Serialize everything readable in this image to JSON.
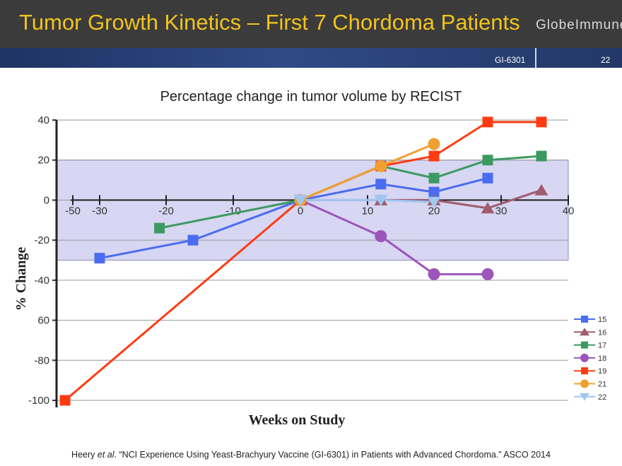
{
  "header": {
    "title": "Tumor Growth Kinetics – First 7 Chordoma Patients",
    "logo": "GlobeImmune",
    "code": "GI-6301",
    "slide_number": "22"
  },
  "footer": {
    "prefix": "Heery ",
    "etal": "et al",
    "rest": ". “NCI Experience Using Yeast-Brachyury Vaccine (GI-6301) in Patients with Advanced Chordoma.” ASCO 2014"
  },
  "chart_data": {
    "type": "line",
    "title": "Percentage change in tumor volume by RECIST",
    "xlabel": "Weeks on Study",
    "ylabel": "% Change",
    "ylim": [
      -100,
      40
    ],
    "yticks": [
      40,
      20,
      0,
      -20,
      -40,
      -60,
      -80,
      -100
    ],
    "ytick_labels": [
      "40",
      "20",
      "0",
      "-20",
      "-40",
      "60",
      "-80",
      "-100"
    ],
    "xticks": [
      -50,
      -30,
      -20,
      -10,
      0,
      10,
      20,
      30,
      40
    ],
    "xtick_labels": [
      "-50",
      "-30",
      "-20",
      "-10",
      "0",
      "10",
      "20",
      "30",
      "40"
    ],
    "shaded_band": [
      -30,
      20
    ],
    "series": [
      {
        "name": "15",
        "color": "#4a6cf0",
        "marker": "square",
        "x": [
          -30,
          -16,
          0,
          12,
          20,
          28
        ],
        "y": [
          -29,
          -20,
          0,
          8,
          4,
          11
        ]
      },
      {
        "name": "16",
        "color": "#a05c6e",
        "marker": "triangle",
        "x": [
          0,
          12,
          20,
          28,
          36
        ],
        "y": [
          0,
          0,
          0,
          -4,
          5
        ]
      },
      {
        "name": "17",
        "color": "#3c9a60",
        "marker": "square",
        "x": [
          -21,
          0,
          12,
          20,
          28,
          36
        ],
        "y": [
          -14,
          0,
          17,
          11,
          20,
          22
        ]
      },
      {
        "name": "18",
        "color": "#9c55b8",
        "marker": "circle",
        "x": [
          0,
          12,
          20,
          28
        ],
        "y": [
          0,
          -18,
          -37,
          -37
        ]
      },
      {
        "name": "19",
        "color": "#ff3b12",
        "marker": "square",
        "x": [
          -56,
          0,
          12,
          20,
          28,
          36
        ],
        "y": [
          -100,
          0,
          17,
          22,
          39,
          39
        ]
      },
      {
        "name": "21",
        "color": "#f0a030",
        "marker": "circle",
        "x": [
          0,
          12,
          20
        ],
        "y": [
          0,
          17,
          28
        ]
      },
      {
        "name": "22",
        "color": "#9fc7f2",
        "marker": "triangle-down",
        "x": [
          0,
          12,
          20
        ],
        "y": [
          0,
          0,
          -1
        ]
      }
    ],
    "legend_position": "bottom-right"
  }
}
